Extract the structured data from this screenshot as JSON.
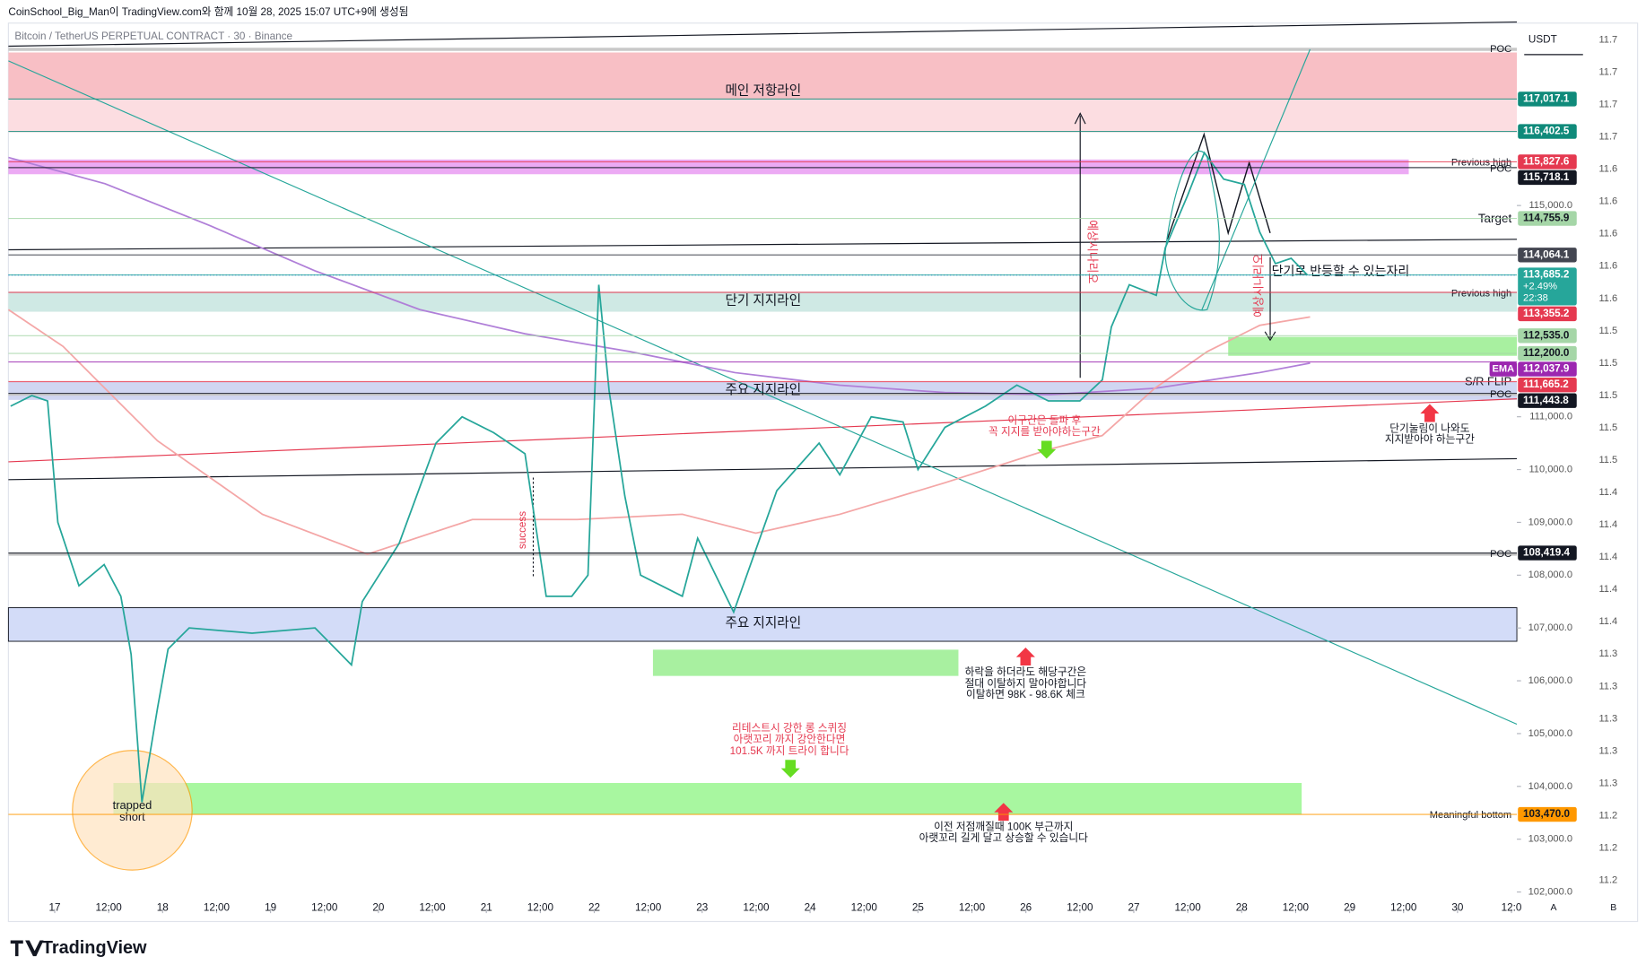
{
  "header": {
    "credit": "CoinSchool_Big_Man이 TradingView.com와 함께 10월 28, 2025 15:07 UTC+9에 생성됨",
    "symbol": "Bitcoin / TetherUS PERPETUAL CONTRACT · 30 · Binance"
  },
  "chart_data": {
    "type": "line",
    "currency": "USDT",
    "color": "#26a69a",
    "x": [
      -9.8,
      -5.1,
      -1.6,
      0.7,
      5.4,
      11,
      14.7,
      17,
      19.4,
      22.9,
      25.2,
      29.9,
      43.9,
      57.9,
      66,
      68.4,
      76.6,
      84.8,
      90.6,
      97.6,
      104.6,
      109.3,
      115,
      118.6,
      121,
      123.3,
      126.8,
      130.3,
      139.6,
      143,
      151,
      156,
      160.6,
      170,
      174.6,
      181.6,
      188.7,
      192,
      198,
      207,
      214,
      221,
      228,
      233,
      235,
      239,
      245,
      247,
      252,
      255.7,
      260,
      264.6,
      268,
      271.5,
      275,
      278.6
    ],
    "values": [
      111200,
      111400,
      111300,
      109000,
      107800,
      108200,
      107600,
      106500,
      103700,
      105500,
      106600,
      107000,
      106900,
      107000,
      106300,
      107500,
      108600,
      110500,
      111000,
      110700,
      110300,
      107600,
      107600,
      108000,
      113500,
      111500,
      109500,
      108000,
      107600,
      108700,
      107300,
      108500,
      109600,
      110500,
      109900,
      111000,
      110900,
      110000,
      110800,
      111200,
      111600,
      111300,
      111300,
      111700,
      112700,
      113500,
      113300,
      114200,
      115200,
      116000,
      115500,
      115400,
      114500,
      113900,
      114000,
      113685.2
    ],
    "xlim": [
      -10.3,
      325.2
    ],
    "xticks": [
      {
        "value": 0,
        "label": "17"
      },
      {
        "value": 12,
        "label": "12:00"
      },
      {
        "value": 24,
        "label": "18"
      },
      {
        "value": 36,
        "label": "12:00"
      },
      {
        "value": 48,
        "label": "19"
      },
      {
        "value": 60,
        "label": "12:00"
      },
      {
        "value": 72,
        "label": "20"
      },
      {
        "value": 84,
        "label": "12:00"
      },
      {
        "value": 96,
        "label": "21"
      },
      {
        "value": 108,
        "label": "12:00"
      },
      {
        "value": 120,
        "label": "22"
      },
      {
        "value": 132,
        "label": "12:00"
      },
      {
        "value": 144,
        "label": "23"
      },
      {
        "value": 156,
        "label": "12:00"
      },
      {
        "value": 168,
        "label": "24"
      },
      {
        "value": 180,
        "label": "12:00"
      },
      {
        "value": 192,
        "label": "25"
      },
      {
        "value": 204,
        "label": "12:00"
      },
      {
        "value": 216,
        "label": "26"
      },
      {
        "value": 228,
        "label": "12:00"
      },
      {
        "value": 240,
        "label": "27"
      },
      {
        "value": 252,
        "label": "12:00"
      },
      {
        "value": 264,
        "label": "28"
      },
      {
        "value": 276,
        "label": "12:00"
      },
      {
        "value": 288,
        "label": "29"
      },
      {
        "value": 300,
        "label": "12:00"
      },
      {
        "value": 312,
        "label": "30"
      },
      {
        "value": 324,
        "label": "12:0"
      }
    ],
    "ylim": [
      101600,
      118455
    ],
    "yticks": [
      {
        "value": 115000,
        "label": "115,000.0"
      },
      {
        "value": 111000,
        "label": "111,000.0"
      },
      {
        "value": 110000,
        "label": "110,000.0"
      },
      {
        "value": 109000,
        "label": "109,000.0"
      },
      {
        "value": 108000,
        "label": "108,000.0"
      },
      {
        "value": 107000,
        "label": "107,000.0"
      },
      {
        "value": 106000,
        "label": "106,000.0"
      },
      {
        "value": 105000,
        "label": "105,000.0"
      },
      {
        "value": 104000,
        "label": "104,000.0"
      },
      {
        "value": 103000,
        "label": "103,000.0"
      },
      {
        "value": 102000,
        "label": "102,000.0"
      }
    ],
    "levels": [
      {
        "value": 117017.1,
        "label": "117,017.1",
        "color": "#0f8a7a",
        "text_color": "#ffffff"
      },
      {
        "value": 116402.5,
        "label": "116,402.5",
        "color": "#0f8a7a",
        "text_color": "#ffffff"
      },
      {
        "value": 115827.6,
        "label": "115,827.6",
        "color": "#e53950",
        "text_color": "#ffffff"
      },
      {
        "value": 115718.1,
        "label": "115,718.1",
        "color": "#131722",
        "text_color": "#ffffff"
      },
      {
        "value": 114755.9,
        "label": "114,755.9",
        "color": "#a5d6a7",
        "text_color": "#131722"
      },
      {
        "value": 114064.1,
        "label": "114,064.1",
        "color": "#434651",
        "text_color": "#ffffff"
      },
      {
        "value": 113685.2,
        "label": "113,685.2",
        "color": "#26a69a",
        "text_color": "#ffffff",
        "change": "+2.49%",
        "countdown": "22:38"
      },
      {
        "value": 113355.2,
        "label": "113,355.2",
        "color": "#e53950",
        "text_color": "#ffffff"
      },
      {
        "value": 112535.0,
        "label": "112,535.0",
        "color": "#a5d6a7",
        "text_color": "#131722"
      },
      {
        "value": 112200.0,
        "label": "112,200.0",
        "color": "#a5d6a7",
        "text_color": "#131722"
      },
      {
        "value": 112037.9,
        "label": "112,037.9",
        "color": "#9c27b0",
        "text_color": "#ffffff",
        "tag": "EMA"
      },
      {
        "value": 111665.2,
        "label": "111,665.2",
        "color": "#e53950",
        "text_color": "#ffffff"
      },
      {
        "value": 111443.8,
        "label": "111,443.8",
        "color": "#131722",
        "text_color": "#ffffff"
      },
      {
        "value": 108419.4,
        "label": "108,419.4",
        "color": "#131722",
        "text_color": "#ffffff"
      },
      {
        "value": 103470.0,
        "label": "103,470.0",
        "color": "#ff9800",
        "text_color": "#131722"
      }
    ],
    "right_scale_labels": [
      "11.7",
      "11.7",
      "11.7",
      "11.7",
      "11.6",
      "11.6",
      "11.6",
      "11.6",
      "11.6",
      "11.5",
      "11.5",
      "11.5",
      "11.5",
      "11.5",
      "11.4",
      "11.4",
      "11.4",
      "11.4",
      "11.4",
      "11.3",
      "11.3",
      "11.3",
      "11.3",
      "11.3",
      "11.2",
      "11.2",
      "11.2"
    ]
  },
  "annotations": {
    "main_resistance": "메인 저항라인",
    "short_support": "단기 지지라인",
    "major_support_1": "주요 지지라인",
    "major_support_2": "주요 지지라인",
    "previous_high_1": "Previous high",
    "previous_high_2": "Previous high",
    "poc_1": "POC",
    "poc_2": "POC",
    "poc_3": "POC",
    "poc_4": "POC",
    "target": "Target",
    "sr_flip": "S/R FLIP",
    "meaningful_bottom": "Meaningful bottom",
    "rebound": "단기로 반등할 수 있는자리",
    "breakout": [
      "이구간은 돌파 후",
      "꼭 지지를 받아야하는구간"
    ],
    "pullback": [
      "단기눌림이 나와도",
      "지지받아야 하는구간"
    ],
    "hold": [
      "하락을 하더라도 해당구간은",
      "절대 이탈하지 말아야합니다",
      "이탈하면 98K - 98.6K 체크"
    ],
    "retest": [
      "리테스트시 강한 롱 스퀴징",
      "아랫꼬리 까지 강안한다면",
      "101.5K 까지 트라이 합니다"
    ],
    "prev_low": [
      "이전 저점깨질때 100K 부근까지",
      "아랫꼬리 길게 달고 상승할 수 있습니다"
    ],
    "trapped": [
      "trapped",
      "short"
    ],
    "success": "success",
    "scenario_1": "예상시나리오",
    "scenario_2": "예상시나리오"
  },
  "footer": {
    "brand": "TradingView",
    "buttons": [
      "A",
      "B"
    ]
  }
}
